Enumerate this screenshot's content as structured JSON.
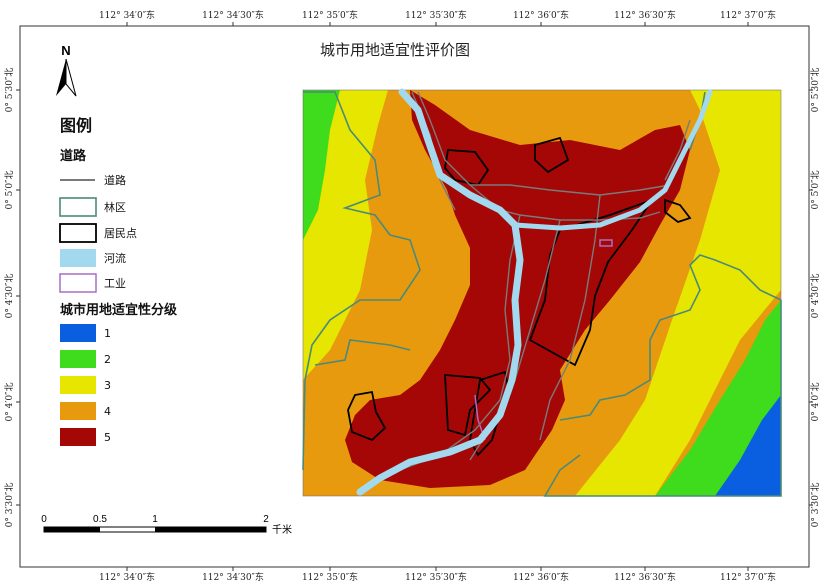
{
  "map": {
    "title": "城市用地适宜性评价图",
    "north_label": "N",
    "lon_ticks": [
      "112° 34′0″东",
      "112° 34′30″东",
      "112° 35′0″东",
      "112° 35′30″东",
      "112° 36′0″东",
      "112° 36′30″东",
      "112° 37′0″东"
    ],
    "lat_ticks": [
      "0° 5′30″北",
      "0° 5′0″北",
      "0° 4′30″北",
      "0° 4′0″北",
      "0° 3′30″北"
    ]
  },
  "legend": {
    "title": "图例",
    "road_group_title": "道路",
    "items": [
      {
        "label": "道路",
        "kind": "line",
        "color": "#7a7a7a"
      },
      {
        "label": "林区",
        "kind": "box",
        "color": "#4a8a7a"
      },
      {
        "label": "居民点",
        "kind": "box",
        "color": "#000000"
      },
      {
        "label": "河流",
        "kind": "fill",
        "color": "#a3d9ee"
      },
      {
        "label": "工业",
        "kind": "box",
        "color": "#a96fc2"
      }
    ],
    "suitability_title": "城市用地适宜性分级",
    "classes": [
      {
        "label": "1",
        "color": "#0a5fe0"
      },
      {
        "label": "2",
        "color": "#3edc1c"
      },
      {
        "label": "3",
        "color": "#e6e600"
      },
      {
        "label": "4",
        "color": "#e89a0e"
      },
      {
        "label": "5",
        "color": "#a50606"
      }
    ]
  },
  "scalebar": {
    "ticks": [
      "0",
      "0.5",
      "1",
      "2"
    ],
    "unit": "千米"
  }
}
